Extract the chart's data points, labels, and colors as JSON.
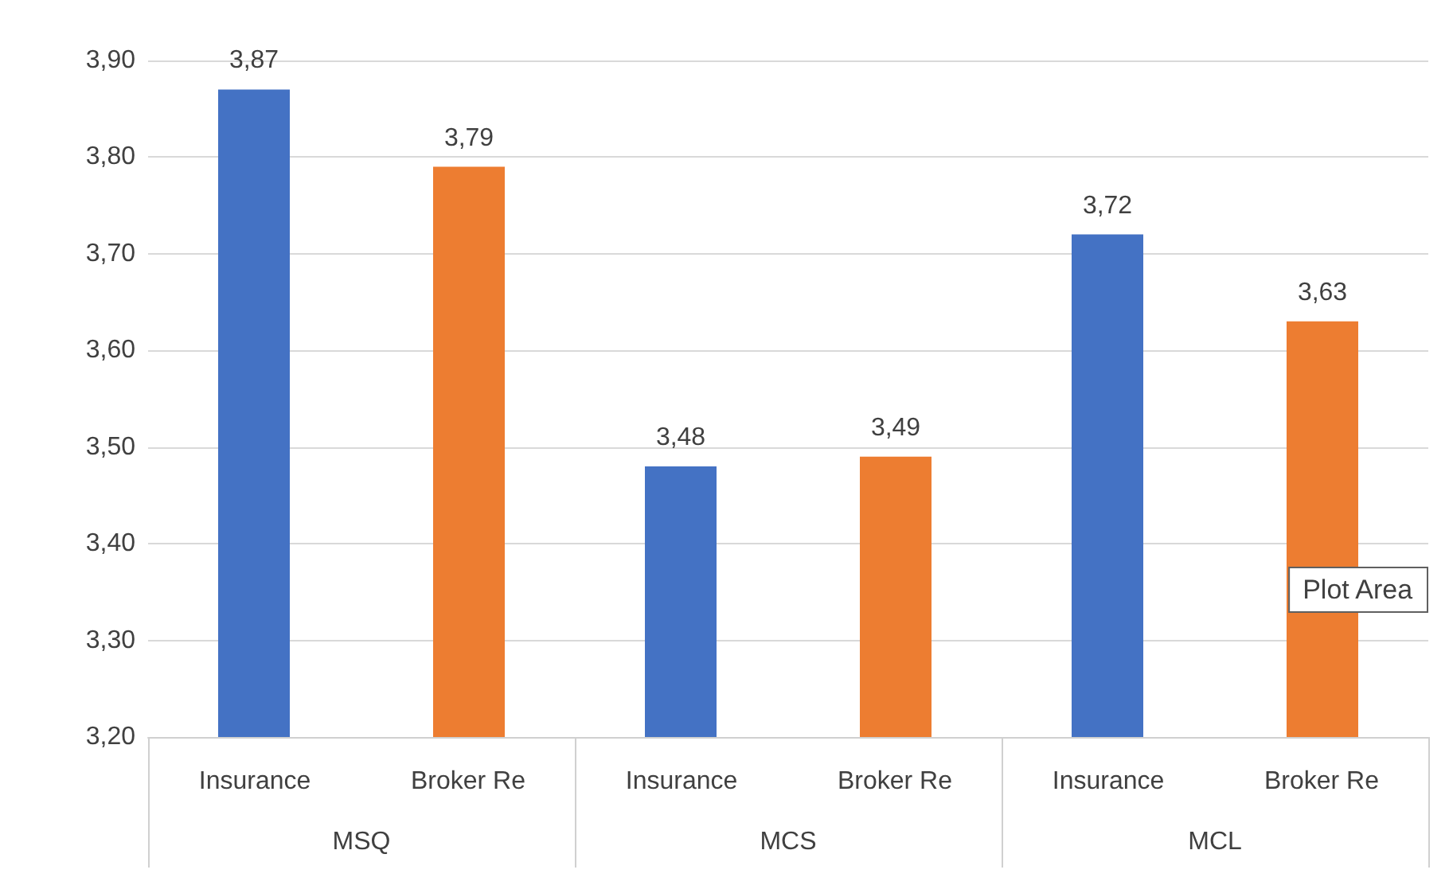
{
  "chart_data": {
    "type": "bar",
    "categories": [
      "MSQ",
      "MCS",
      "MCL"
    ],
    "series": [
      {
        "name": "Insurance",
        "color": "#4472c4",
        "values": [
          3.87,
          3.48,
          3.72
        ],
        "value_labels": [
          "3,87",
          "3,48",
          "3,72"
        ]
      },
      {
        "name": "Broker Re",
        "color": "#ed7d31",
        "values": [
          3.79,
          3.49,
          3.63
        ],
        "value_labels": [
          "3,79",
          "3,49",
          "3,63"
        ]
      }
    ],
    "ylim": [
      3.2,
      3.9
    ],
    "yticks": [
      {
        "value": 3.2,
        "label": "3,20"
      },
      {
        "value": 3.3,
        "label": "3,30"
      },
      {
        "value": 3.4,
        "label": "3,40"
      },
      {
        "value": 3.5,
        "label": "3,50"
      },
      {
        "value": 3.6,
        "label": "3,60"
      },
      {
        "value": 3.7,
        "label": "3,70"
      },
      {
        "value": 3.8,
        "label": "3,80"
      },
      {
        "value": 3.9,
        "label": "3,90"
      }
    ],
    "grid": "y",
    "legend": false,
    "annotations": [
      "Plot Area"
    ]
  }
}
